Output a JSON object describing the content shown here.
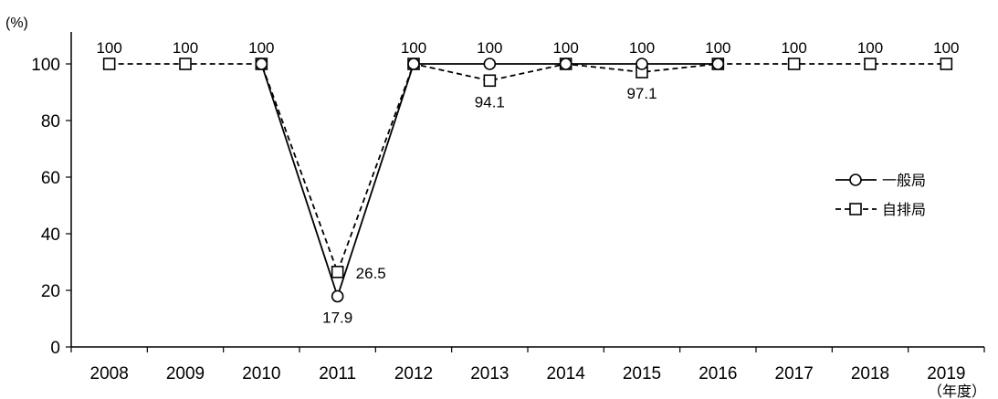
{
  "chart_data": {
    "type": "line",
    "y_unit": "(%)",
    "x_unit": "（年度）",
    "categories": [
      "2008",
      "2009",
      "2010",
      "2011",
      "2012",
      "2013",
      "2014",
      "2015",
      "2016",
      "2017",
      "2018",
      "2019"
    ],
    "ylim": [
      0,
      100
    ],
    "yticks": [
      "0",
      "20",
      "40",
      "60",
      "80",
      "100"
    ],
    "grid": false,
    "legend_position": "right",
    "series": [
      {
        "name": "一般局",
        "marker": "circle",
        "dash": "solid",
        "values": [
          null,
          null,
          100,
          17.9,
          100,
          100,
          100,
          100,
          100,
          null,
          null,
          null
        ]
      },
      {
        "name": "自排局",
        "marker": "square",
        "dash": "dashed",
        "values": [
          100,
          100,
          100,
          26.5,
          100,
          94.1,
          100,
          97.1,
          100,
          100,
          100,
          100
        ]
      }
    ],
    "data_labels": [
      {
        "category": "2008",
        "text": "100",
        "position": "above"
      },
      {
        "category": "2009",
        "text": "100",
        "position": "above"
      },
      {
        "category": "2010",
        "text": "100",
        "position": "above"
      },
      {
        "category": "2011",
        "text": "26.5",
        "position": "right",
        "value": 26.5
      },
      {
        "category": "2011",
        "text": "17.9",
        "position": "below",
        "value": 17.9
      },
      {
        "category": "2012",
        "text": "100",
        "position": "above"
      },
      {
        "category": "2013",
        "text": "100",
        "position": "above"
      },
      {
        "category": "2013",
        "text": "94.1",
        "position": "below",
        "value": 94.1
      },
      {
        "category": "2014",
        "text": "100",
        "position": "above"
      },
      {
        "category": "2015",
        "text": "100",
        "position": "above"
      },
      {
        "category": "2015",
        "text": "97.1",
        "position": "below",
        "value": 97.1
      },
      {
        "category": "2016",
        "text": "100",
        "position": "above"
      },
      {
        "category": "2017",
        "text": "100",
        "position": "above"
      },
      {
        "category": "2018",
        "text": "100",
        "position": "above"
      },
      {
        "category": "2019",
        "text": "100",
        "position": "above"
      }
    ]
  }
}
